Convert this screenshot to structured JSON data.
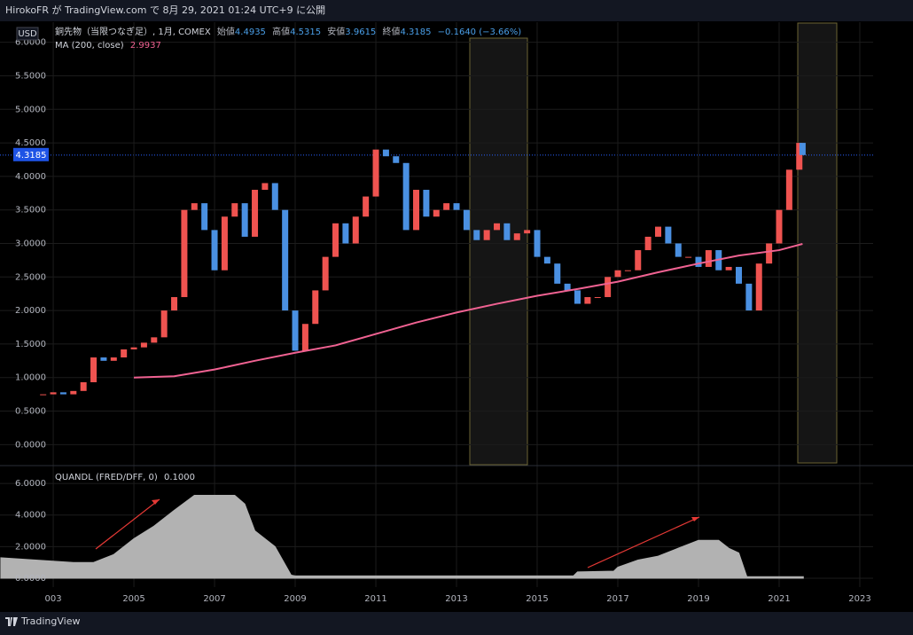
{
  "header": "HirokoFR が TradingView.com で 8月 29, 2021 01:24 UTC+9 に公開",
  "footer": "TradingView",
  "chart_data": [
    {
      "type": "candlestick",
      "unit": "USD",
      "legend_ohlc": [
        {
          "label": "始値",
          "value": "4.4935"
        },
        {
          "label": "高値",
          "value": "4.5315"
        },
        {
          "label": "安値",
          "value": "3.9615"
        },
        {
          "label": "終値",
          "value": "4.3185"
        }
      ],
      "legend_change": "−0.1640 (−3.66%)",
      "last_price": {
        "value": 4.3185,
        "label": "4.3185"
      },
      "xlim": [
        2001.68,
        2023.33
      ],
      "ylim": [
        -0.3,
        6.3
      ],
      "yticks": [
        {
          "value": 0,
          "label": "0.0000"
        },
        {
          "value": 0.5,
          "label": "0.5000"
        },
        {
          "value": 1,
          "label": "1.0000"
        },
        {
          "value": 1.5,
          "label": "1.5000"
        },
        {
          "value": 2,
          "label": "2.0000"
        },
        {
          "value": 2.5,
          "label": "2.5000"
        },
        {
          "value": 3,
          "label": "3.0000"
        },
        {
          "value": 3.5,
          "label": "3.5000"
        },
        {
          "value": 4,
          "label": "4.0000"
        },
        {
          "value": 4.5,
          "label": "4.5000"
        },
        {
          "value": 5,
          "label": "5.0000"
        },
        {
          "value": 5.5,
          "label": "5.5000"
        },
        {
          "value": 6,
          "label": "6.0000"
        }
      ],
      "up_color": "#ef5350",
      "down_color": "#4a90e2",
      "series": [
        {
          "name": "銅先物（当限つなぎ足）, 1月, COMEX",
          "type": "candlestick",
          "x": [
            2002.75,
            2003,
            2003.25,
            2003.5,
            2003.75,
            2004,
            2004.25,
            2004.5,
            2004.75,
            2005,
            2005.25,
            2005.5,
            2005.75,
            2006,
            2006.25,
            2006.5,
            2006.75,
            2007,
            2007.25,
            2007.5,
            2007.75,
            2008,
            2008.25,
            2008.5,
            2008.75,
            2009,
            2009.25,
            2009.5,
            2009.75,
            2010,
            2010.25,
            2010.5,
            2010.75,
            2011,
            2011.25,
            2011.5,
            2011.75,
            2012,
            2012.25,
            2012.5,
            2012.75,
            2013,
            2013.25,
            2013.5,
            2013.75,
            2014,
            2014.25,
            2014.5,
            2014.75,
            2015,
            2015.25,
            2015.5,
            2015.75,
            2016,
            2016.25,
            2016.5,
            2016.75,
            2017,
            2017.25,
            2017.5,
            2017.75,
            2018,
            2018.25,
            2018.5,
            2018.75,
            2019,
            2019.25,
            2019.5,
            2019.75,
            2020,
            2020.25,
            2020.5,
            2020.75,
            2021,
            2021.25,
            2021.5,
            2021.58
          ],
          "values": [
            0.75,
            0.78,
            0.75,
            0.8,
            0.93,
            1.3,
            1.25,
            1.3,
            1.42,
            1.45,
            1.52,
            1.6,
            2.0,
            2.2,
            3.5,
            3.6,
            3.2,
            2.6,
            3.4,
            3.6,
            3.1,
            3.8,
            3.9,
            3.5,
            2.0,
            1.4,
            1.8,
            2.3,
            2.8,
            3.3,
            3.0,
            3.4,
            3.7,
            4.4,
            4.3,
            4.2,
            3.2,
            3.8,
            3.4,
            3.5,
            3.6,
            3.5,
            3.2,
            3.05,
            3.2,
            3.3,
            3.05,
            3.15,
            3.2,
            2.8,
            2.7,
            2.4,
            2.3,
            2.1,
            2.2,
            2.2,
            2.5,
            2.6,
            2.6,
            2.9,
            3.1,
            3.25,
            3.0,
            2.8,
            2.8,
            2.65,
            2.9,
            2.6,
            2.65,
            2.4,
            2.0,
            2.7,
            3.0,
            3.5,
            4.1,
            4.5,
            4.3185
          ]
        },
        {
          "name": "MA (200, close)",
          "type": "line",
          "color": "#f06292",
          "value_label": "2.9937",
          "x": [
            2005,
            2006,
            2007,
            2008,
            2009,
            2010,
            2011,
            2012,
            2013,
            2014,
            2015,
            2016,
            2017,
            2018,
            2019,
            2020,
            2021,
            2021.58
          ],
          "values": [
            1.0,
            1.02,
            1.12,
            1.25,
            1.37,
            1.48,
            1.65,
            1.82,
            1.97,
            2.1,
            2.22,
            2.32,
            2.43,
            2.57,
            2.7,
            2.82,
            2.9,
            2.9937
          ]
        }
      ]
    },
    {
      "type": "area",
      "xlim": [
        2001.68,
        2023.33
      ],
      "ylim": [
        -0.56,
        7.07
      ],
      "yticks": [
        {
          "value": 0,
          "label": "0.0000"
        },
        {
          "value": 2,
          "label": "2.0000"
        },
        {
          "value": 4,
          "label": "4.0000"
        },
        {
          "value": 6,
          "label": "6.0000"
        }
      ],
      "xticks": [
        {
          "value": 2003,
          "label": "003"
        },
        2005,
        2007,
        2009,
        2011,
        2013,
        2015,
        2017,
        2019,
        2021,
        2023
      ],
      "series": [
        {
          "name": "QUANDL (FRED/DFF, 0)",
          "type": "area",
          "color": "#b2b2b2",
          "value_label": "0.1000",
          "x": [
            2001.7,
            2003.5,
            2004,
            2004.5,
            2005,
            2005.5,
            2006,
            2006.5,
            2007.5,
            2007.75,
            2008,
            2008.5,
            2008.9,
            2009,
            2015.9,
            2016,
            2016.9,
            2017,
            2017.5,
            2018,
            2018.5,
            2019,
            2019.5,
            2019.75,
            2020,
            2020.2,
            2021.6
          ],
          "values": [
            1.3,
            1.0,
            1.0,
            1.5,
            2.5,
            3.3,
            4.3,
            5.25,
            5.25,
            4.7,
            3.0,
            2.0,
            0.2,
            0.15,
            0.15,
            0.4,
            0.45,
            0.7,
            1.15,
            1.4,
            1.9,
            2.4,
            2.4,
            1.9,
            1.6,
            0.1,
            0.1
          ]
        }
      ]
    }
  ]
}
